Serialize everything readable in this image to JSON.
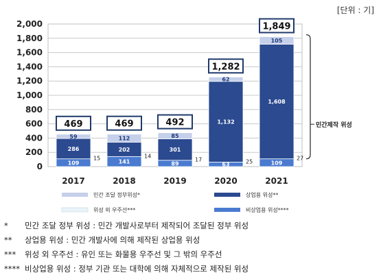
{
  "unit_label": "[단위 : 기]",
  "chart_data": {
    "type": "bar",
    "stacked": true,
    "categories": [
      "2017",
      "2018",
      "2019",
      "2020",
      "2021"
    ],
    "ylim": [
      0,
      2000
    ],
    "yticks": [
      "0",
      "200",
      "400",
      "600",
      "800",
      "1,000",
      "1,200",
      "1,400",
      "1,600",
      "1,800",
      "2,000"
    ],
    "grid": true,
    "series": [
      {
        "name": "비상업용 위성****",
        "values": [
          109,
          141,
          89,
          63,
          109
        ],
        "labels": [
          "109",
          "141",
          "89",
          "63",
          "109"
        ],
        "color": "#4a7bd0"
      },
      {
        "name": "위성 외 우주선***",
        "values": [
          15,
          14,
          17,
          25,
          27
        ],
        "labels": [
          "15",
          "14",
          "17",
          "25",
          "27"
        ],
        "color": "#eaf3f8"
      },
      {
        "name": "상업용 위성**",
        "values": [
          286,
          202,
          301,
          1132,
          1608
        ],
        "labels": [
          "286",
          "202",
          "301",
          "1,132",
          "1,608"
        ],
        "color": "#2b4a8f"
      },
      {
        "name": "민간 조달 정부위성*",
        "values": [
          59,
          112,
          85,
          62,
          105
        ],
        "labels": [
          "59",
          "112",
          "85",
          "62",
          "105"
        ],
        "color": "#c5d0ea"
      }
    ],
    "totals": [
      "469",
      "469",
      "492",
      "1,282",
      "1,849"
    ],
    "annotation": "민간제작 위성",
    "legend_position": "bottom"
  },
  "notes": [
    {
      "mark": "*",
      "text": "민간 조달 정부 위성 : 민간 개발사로부터 제작되어 조달된 정부 위성"
    },
    {
      "mark": "**",
      "text": "상업용 위성 : 민간 개발사에 의해 제작된 상업용 위성"
    },
    {
      "mark": "***",
      "text": "위성 외 우주선 : 유인 또는 화물용 우주선 및 그 밖의 우주선"
    },
    {
      "mark": "****",
      "text": "비상업용 위성 : 정부 기관 또는 대학에 의해 자체적으로 제작된 위성"
    }
  ]
}
